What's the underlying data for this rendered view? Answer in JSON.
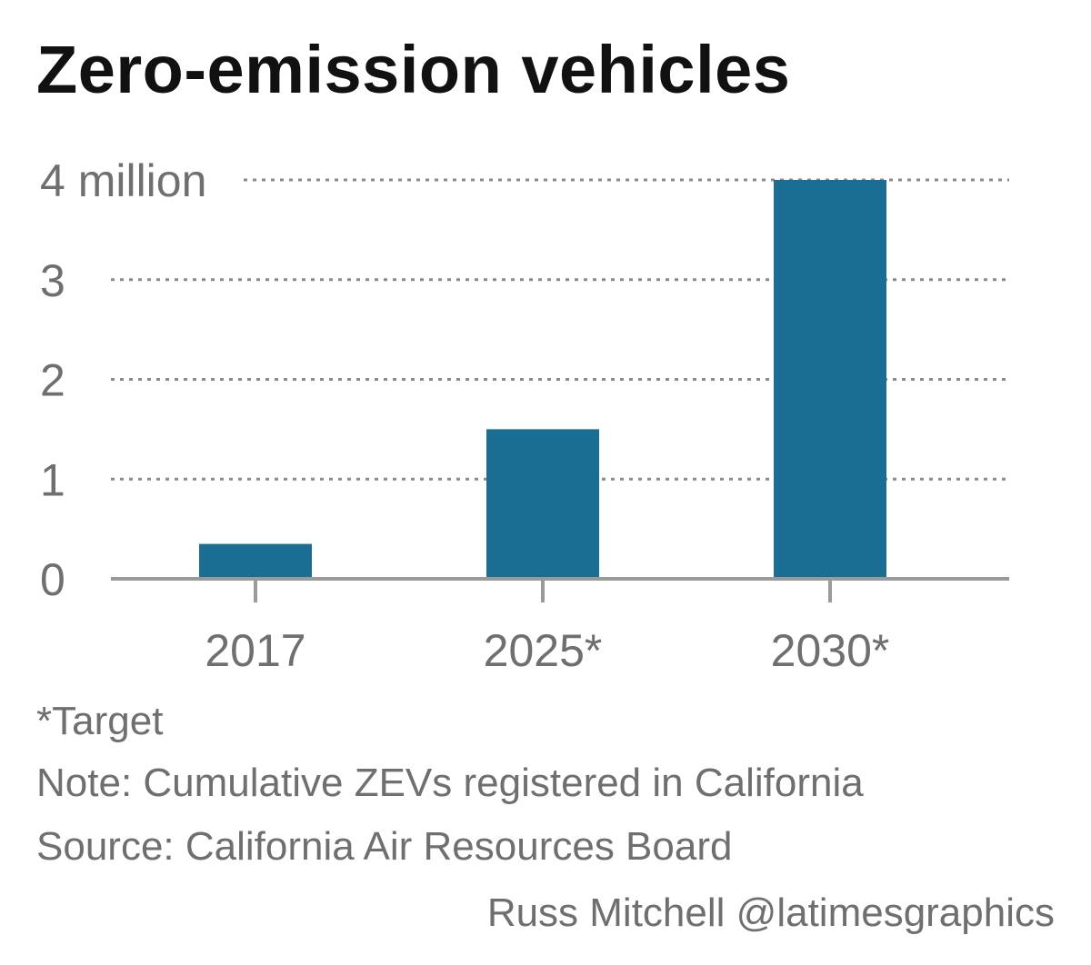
{
  "chart_data": {
    "type": "bar",
    "title": "Zero-emission vehicles",
    "categories": [
      "2017",
      "2025*",
      "2030*"
    ],
    "values": [
      0.35,
      1.5,
      4.0
    ],
    "ylim": [
      0,
      4
    ],
    "y_ticks": [
      {
        "value": 0,
        "label": "0"
      },
      {
        "value": 1,
        "label": "1"
      },
      {
        "value": 2,
        "label": "2"
      },
      {
        "value": 3,
        "label": "3"
      },
      {
        "value": 4,
        "label": "4 million"
      }
    ],
    "xlabel": "",
    "ylabel": "",
    "grid": true,
    "legend": "none",
    "bar_color": "#1b6e93"
  },
  "notes": {
    "target": "*Target",
    "note": "Note: Cumulative ZEVs registered in California",
    "source": "Source: California Air Resources Board"
  },
  "credit": "Russ Mitchell @latimesgraphics"
}
